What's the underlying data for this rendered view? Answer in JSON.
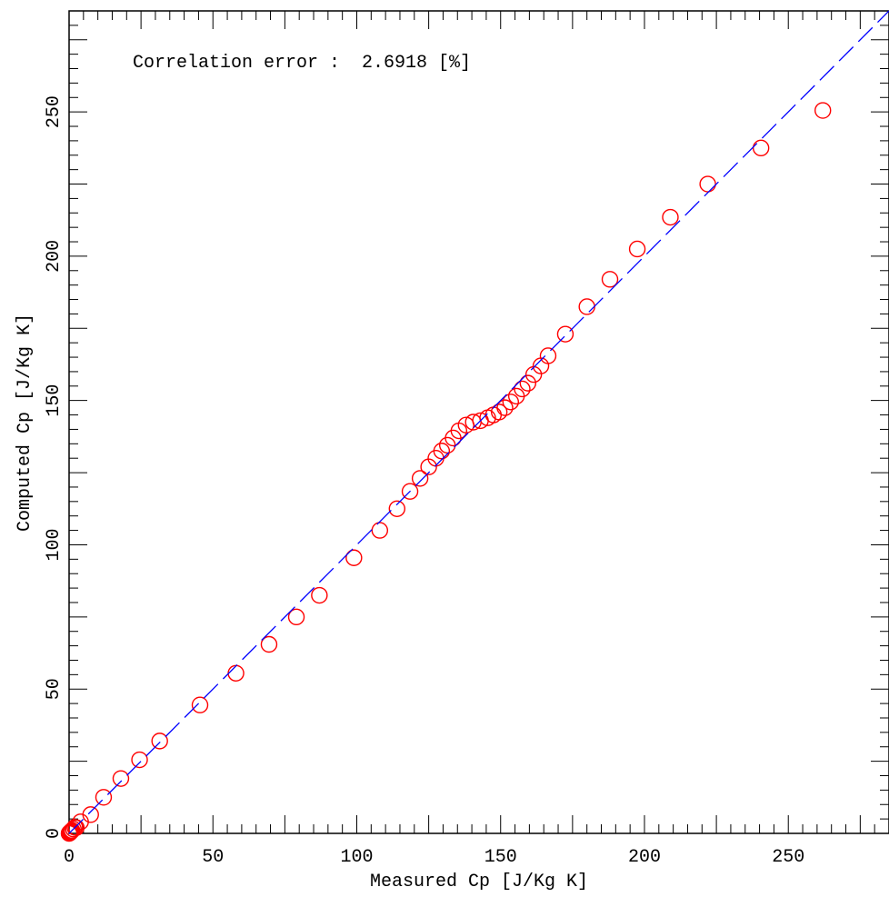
{
  "chart_data": {
    "type": "scatter",
    "title": "",
    "annotation": "Correlation error :  2.6918 [%]",
    "xlabel": "Measured Cp [J/Kg K]",
    "ylabel": "Computed Cp [J/Kg K]",
    "xlim": [
      0,
      285
    ],
    "ylim": [
      0,
      285
    ],
    "x_ticks": [
      0,
      50,
      100,
      150,
      200,
      250
    ],
    "y_ticks": [
      0,
      50,
      100,
      150,
      200,
      250
    ],
    "grid": false,
    "legend": "none",
    "series": [
      {
        "style": "open-circle",
        "color": "#ff0000",
        "points": [
          [
            0.0,
            0.0
          ],
          [
            0.1,
            0.1
          ],
          [
            0.2,
            0.2
          ],
          [
            0.4,
            0.4
          ],
          [
            0.6,
            0.6
          ],
          [
            0.8,
            0.8
          ],
          [
            1.0,
            1.0
          ],
          [
            1.5,
            1.5
          ],
          [
            2.0,
            2.1
          ],
          [
            2.5,
            2.0
          ],
          [
            4.0,
            4.0
          ],
          [
            7.5,
            6.5
          ],
          [
            12.0,
            12.5
          ],
          [
            18.0,
            19.0
          ],
          [
            24.5,
            25.5
          ],
          [
            31.5,
            32.0
          ],
          [
            45.5,
            44.5
          ],
          [
            58.0,
            55.5
          ],
          [
            69.5,
            65.5
          ],
          [
            79.0,
            75.0
          ],
          [
            87.0,
            82.5
          ],
          [
            99.0,
            95.5
          ],
          [
            108.0,
            105.0
          ],
          [
            114.0,
            112.5
          ],
          [
            118.5,
            118.5
          ],
          [
            122.0,
            123.0
          ],
          [
            125.0,
            127.0
          ],
          [
            127.5,
            130.0
          ],
          [
            129.5,
            132.5
          ],
          [
            131.5,
            134.5
          ],
          [
            133.5,
            137.0
          ],
          [
            135.5,
            139.5
          ],
          [
            138.0,
            141.5
          ],
          [
            140.5,
            142.5
          ],
          [
            143.0,
            143.0
          ],
          [
            145.5,
            144.0
          ],
          [
            147.5,
            145.0
          ],
          [
            149.5,
            146.0
          ],
          [
            151.5,
            147.5
          ],
          [
            153.5,
            149.5
          ],
          [
            155.5,
            151.5
          ],
          [
            157.5,
            154.0
          ],
          [
            159.5,
            156.0
          ],
          [
            161.5,
            159.0
          ],
          [
            164.0,
            162.0
          ],
          [
            166.5,
            165.5
          ],
          [
            172.5,
            173.0
          ],
          [
            180.0,
            182.5
          ],
          [
            188.0,
            192.0
          ],
          [
            197.5,
            202.5
          ],
          [
            209.0,
            213.5
          ],
          [
            222.0,
            225.0
          ],
          [
            240.5,
            237.5
          ],
          [
            262.0,
            250.5
          ]
        ]
      },
      {
        "style": "dashed-line",
        "color": "#0000ff",
        "points": [
          [
            0,
            0
          ],
          [
            285,
            285
          ]
        ]
      }
    ]
  }
}
